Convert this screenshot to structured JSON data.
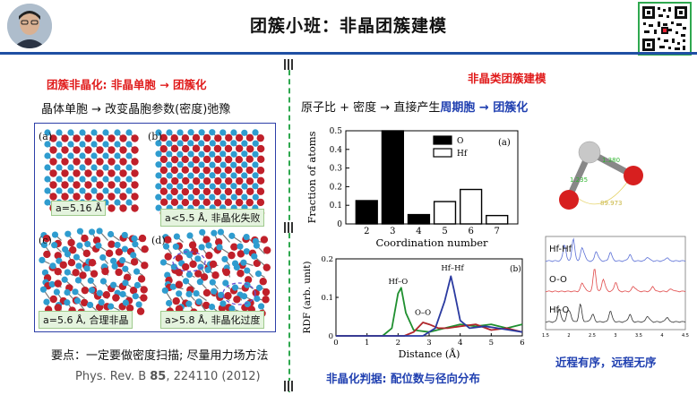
{
  "header": {
    "title": "团簇小班：非晶团簇建模"
  },
  "left": {
    "heading_part1": "团簇非晶化: 非晶单胞 ",
    "heading_arrow": "→",
    "heading_part2": " 团簇化",
    "subtitle": "晶体单胞 → 改变晶胞参数(密度)弛豫",
    "panels": [
      {
        "tag": "(a)",
        "label": "a=5.16 Å"
      },
      {
        "tag": "(b)",
        "label": "a<5.5 Å, 非晶化失败"
      },
      {
        "tag": "(c)",
        "label": "a=5.6 Å, 合理非晶"
      },
      {
        "tag": "(d)",
        "label": "a>5.8 Å, 非晶化过度"
      }
    ],
    "note": "要点：一定要做密度扫描; 尽量用力场方法",
    "ref_prefix": "Phys. Rev. B ",
    "ref_volume": "85",
    "ref_suffix": ", 224110 (2012)"
  },
  "right": {
    "heading": "非晶类团簇建模",
    "subtitle_part1": "原子比 + 密度 → 直接产生",
    "subtitle_part2": "周期胞 → 团簇化",
    "caption_left": "非晶化判据: 配位数与径向分布",
    "caption_right": "近程有序，远程无序",
    "molecule_labels": [
      "1.380",
      "1.235",
      "89.973"
    ]
  },
  "chart_data": [
    {
      "type": "bar",
      "panel_tag": "(a)",
      "xlabel": "Coordination number",
      "ylabel": "Fraction of atoms",
      "categories": [
        "2",
        "3",
        "4",
        "5",
        "6",
        "7"
      ],
      "ylim": [
        0,
        0.5
      ],
      "yticks": [
        "0",
        "0.1",
        "0.2",
        "0.3",
        "0.4",
        "0.5"
      ],
      "series": [
        {
          "name": "O",
          "color": "#000000",
          "values": [
            0.125,
            0.5,
            0.05,
            0,
            0,
            0
          ]
        },
        {
          "name": "Hf",
          "color": "#ffffff",
          "values": [
            0,
            0,
            0,
            0.12,
            0.185,
            0.045
          ]
        }
      ],
      "legend": "top-right"
    },
    {
      "type": "line",
      "panel_tag": "(b)",
      "xlabel": "Distance (Å)",
      "ylabel": "RDF (arb. unit)",
      "xlim": [
        0,
        6
      ],
      "ylim": [
        0,
        0.2
      ],
      "xticks": [
        "0",
        "1",
        "2",
        "3",
        "4",
        "5",
        "6"
      ],
      "yticks": [
        "0",
        "0.1",
        "0.2"
      ],
      "annotations": [
        "Hf–O",
        "O–O",
        "Hf–Hf"
      ],
      "series": [
        {
          "name": "Hf–O",
          "color": "#1f8f2f",
          "x": [
            0,
            1.5,
            1.8,
            2.0,
            2.1,
            2.25,
            2.5,
            3.0,
            3.5,
            4.0,
            4.5,
            5.0,
            5.5,
            6.0
          ],
          "y": [
            0,
            0,
            0.02,
            0.11,
            0.125,
            0.06,
            0.015,
            0.01,
            0.02,
            0.03,
            0.025,
            0.03,
            0.02,
            0.03
          ]
        },
        {
          "name": "O–O",
          "color": "#b0262b",
          "x": [
            0,
            2.2,
            2.5,
            2.8,
            3.0,
            3.3,
            3.6,
            4.0,
            4.5,
            5.0,
            5.5,
            6.0
          ],
          "y": [
            0,
            0,
            0.01,
            0.035,
            0.03,
            0.02,
            0.02,
            0.025,
            0.03,
            0.015,
            0.02,
            0.01
          ]
        },
        {
          "name": "Hf–Hf",
          "color": "#2a3aa0",
          "x": [
            0,
            2.8,
            3.2,
            3.5,
            3.7,
            3.8,
            4.0,
            4.3,
            4.8,
            5.2,
            5.6,
            6.0
          ],
          "y": [
            0,
            0,
            0.02,
            0.09,
            0.155,
            0.12,
            0.04,
            0.02,
            0.025,
            0.02,
            0.015,
            0.01
          ]
        }
      ]
    },
    {
      "type": "line",
      "xlim": [
        1.5,
        4.5
      ],
      "xticks": [
        "1.5",
        "2",
        "2.5",
        "3",
        "3.5",
        "4",
        "4.5"
      ],
      "series": [
        {
          "name": "Hf-Hf",
          "color": "#5a6fd6"
        },
        {
          "name": "O-O",
          "color": "#e04848"
        },
        {
          "name": "Hf-O",
          "color": "#333333"
        }
      ]
    }
  ]
}
